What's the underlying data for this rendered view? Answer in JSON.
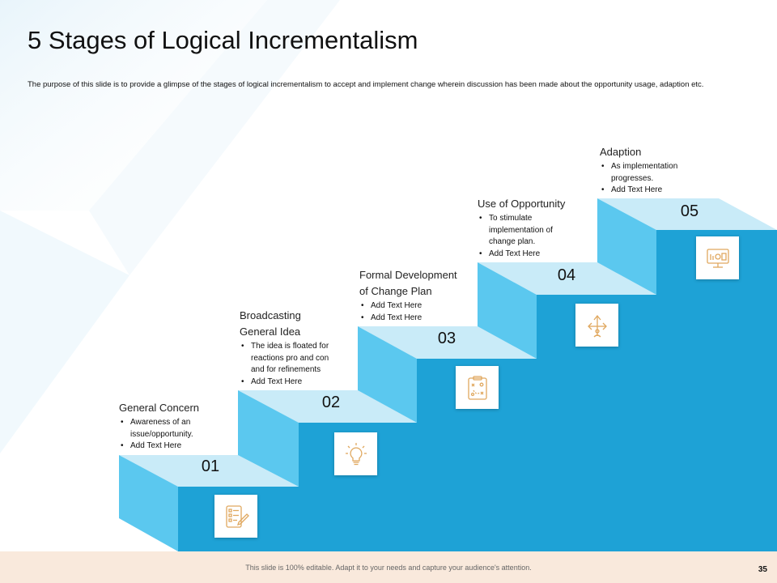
{
  "slide": {
    "title": "5 Stages of Logical Incrementalism",
    "subtitle": "The purpose of this slide is to provide a glimpse of the stages of logical incrementalism to accept and implement change wherein discussion has been made about the opportunity usage, adaption etc."
  },
  "colors": {
    "top_face": "#c9ebf8",
    "riser": "#5bc8ef",
    "body": "#1ea2d6",
    "icon": "#e0a85f"
  },
  "stages": [
    {
      "number": "01",
      "title_lines": [
        "General Concern"
      ],
      "bullets": [
        "Awareness of an issue/opportunity.",
        "Add Text Here"
      ],
      "icon": "checklist-icon"
    },
    {
      "number": "02",
      "title_lines": [
        "Broadcasting",
        "General Idea"
      ],
      "bullets": [
        "The idea is floated for reactions pro and con and for refinements",
        "Add Text Here"
      ],
      "icon": "lightbulb-icon"
    },
    {
      "number": "03",
      "title_lines": [
        "Formal Development",
        "of Change Plan"
      ],
      "bullets": [
        "Add Text Here",
        "Add Text Here"
      ],
      "icon": "strategy-clipboard-icon"
    },
    {
      "number": "04",
      "title_lines": [
        "Use of Opportunity"
      ],
      "bullets": [
        "To stimulate implementation of change plan.",
        "Add Text Here"
      ],
      "icon": "direction-arrows-icon"
    },
    {
      "number": "05",
      "title_lines": [
        "Adaption"
      ],
      "bullets": [
        "As implementation progresses.",
        "Add Text Here"
      ],
      "icon": "monitor-dashboard-icon"
    }
  ],
  "footer": {
    "text": "This slide is 100% editable. Adapt it to your needs and capture your audience's attention.",
    "page_number": "35"
  }
}
